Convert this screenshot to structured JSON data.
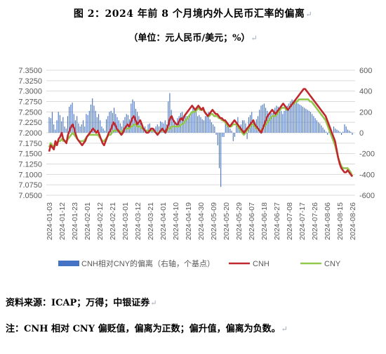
{
  "page": {
    "title": "图 2：2024 年前 8 个月境内外人民币汇率的偏离",
    "unit": "（单位：元人民币/美元；%）",
    "source": "资料来源：ICAP；万得；中银证券",
    "note": "注：CNH 相对 CNY 偏贬值，偏离为正数；偏升值，偏离为负数。",
    "para_mark": "↵"
  },
  "chart_data": {
    "type": "bar+line",
    "title": "",
    "y_left": {
      "min": 7.05,
      "max": 7.35,
      "step": 0.025,
      "decimals": 4
    },
    "y_right": {
      "min": -600,
      "max": 600,
      "step": 200
    },
    "x_tick_labels": [
      "2024-01-03",
      "2024-01-12",
      "2024-01-23",
      "2024-02-01",
      "2024-02-12",
      "2024-02-21",
      "2024-03-01",
      "2024-03-12",
      "2024-03-21",
      "2024-04-01",
      "2024-04-10",
      "2024-04-19",
      "2024-04-30",
      "2024-05-09",
      "2024-05-20",
      "2024-05-29",
      "2024-06-07",
      "2024-06-18",
      "2024-06-27",
      "2024-07-08",
      "2024-07-17",
      "2024-07-26",
      "2024-08-06",
      "2024-08-15",
      "2024-08-26"
    ],
    "legend": [
      "CNH相对CNY的偏离（右轴，个基点）",
      "CNH",
      "CNY"
    ],
    "colors": {
      "bar": "#4472c4",
      "cnh": "#c0282d",
      "cny": "#92c84e",
      "grid": "#d9d9d9",
      "axis_text": "#595959"
    },
    "series": [
      {
        "name": "CNH",
        "values": [
          7.155,
          7.17,
          7.165,
          7.16,
          7.18,
          7.17,
          7.185,
          7.19,
          7.2,
          7.185,
          7.18,
          7.175,
          7.195,
          7.205,
          7.215,
          7.22,
          7.21,
          7.195,
          7.185,
          7.18,
          7.175,
          7.17,
          7.175,
          7.18,
          7.19,
          7.195,
          7.2,
          7.205,
          7.21,
          7.205,
          7.2,
          7.205,
          7.195,
          7.185,
          7.175,
          7.17,
          7.18,
          7.19,
          7.2,
          7.205,
          7.215,
          7.225,
          7.22,
          7.21,
          7.205,
          7.2,
          7.195,
          7.2,
          7.21,
          7.215,
          7.22,
          7.215,
          7.225,
          7.235,
          7.24,
          7.23,
          7.22,
          7.225,
          7.23,
          7.22,
          7.21,
          7.205,
          7.2,
          7.2,
          7.205,
          7.21,
          7.21,
          7.205,
          7.2,
          7.195,
          7.2,
          7.205,
          7.21,
          7.205,
          7.2,
          7.21,
          7.22,
          7.235,
          7.24,
          7.23,
          7.225,
          7.22,
          7.22,
          7.23,
          7.235,
          7.23,
          7.24,
          7.245,
          7.25,
          7.255,
          7.26,
          7.265,
          7.26,
          7.255,
          7.26,
          7.265,
          7.26,
          7.255,
          7.26,
          7.25,
          7.245,
          7.24,
          7.245,
          7.25,
          7.255,
          7.25,
          7.245,
          7.245,
          7.24,
          7.235,
          7.235,
          7.23,
          7.23,
          7.225,
          7.22,
          7.215,
          7.22,
          7.225,
          7.23,
          7.225,
          7.22,
          7.215,
          7.21,
          7.205,
          7.2,
          7.205,
          7.21,
          7.215,
          7.22,
          7.225,
          7.23,
          7.22,
          7.215,
          7.21,
          7.205,
          7.2,
          7.21,
          7.22,
          7.23,
          7.24,
          7.245,
          7.25,
          7.255,
          7.25,
          7.245,
          7.25,
          7.255,
          7.26,
          7.265,
          7.27,
          7.265,
          7.26,
          7.255,
          7.26,
          7.265,
          7.27,
          7.275,
          7.28,
          7.285,
          7.29,
          7.295,
          7.3,
          7.305,
          7.305,
          7.3,
          7.295,
          7.29,
          7.285,
          7.28,
          7.275,
          7.27,
          7.265,
          7.26,
          7.255,
          7.25,
          7.245,
          7.24,
          7.23,
          7.22,
          7.21,
          7.2,
          7.19,
          7.18,
          7.16,
          7.14,
          7.125,
          7.115,
          7.11,
          7.105,
          7.105,
          7.11,
          7.105,
          7.1,
          7.095
        ]
      },
      {
        "name": "CNY",
        "values": [
          7.165,
          7.175,
          7.17,
          7.165,
          7.17,
          7.175,
          7.18,
          7.18,
          7.185,
          7.18,
          7.18,
          7.18,
          7.185,
          7.19,
          7.195,
          7.2,
          7.195,
          7.19,
          7.185,
          7.18,
          7.18,
          7.18,
          7.18,
          7.185,
          7.19,
          7.195,
          7.195,
          7.195,
          7.195,
          7.195,
          7.195,
          7.195,
          7.19,
          7.185,
          7.18,
          7.18,
          7.185,
          7.19,
          7.195,
          7.195,
          7.2,
          7.205,
          7.205,
          7.205,
          7.205,
          7.205,
          7.2,
          7.205,
          7.21,
          7.21,
          7.21,
          7.21,
          7.215,
          7.215,
          7.22,
          7.22,
          7.215,
          7.215,
          7.215,
          7.21,
          7.21,
          7.205,
          7.205,
          7.205,
          7.205,
          7.205,
          7.205,
          7.205,
          7.2,
          7.2,
          7.2,
          7.205,
          7.205,
          7.205,
          7.2,
          7.205,
          7.21,
          7.21,
          7.215,
          7.215,
          7.215,
          7.215,
          7.215,
          7.215,
          7.22,
          7.22,
          7.225,
          7.23,
          7.235,
          7.24,
          7.245,
          7.25,
          7.25,
          7.25,
          7.255,
          7.26,
          7.255,
          7.255,
          7.255,
          7.25,
          7.245,
          7.24,
          7.24,
          7.245,
          7.245,
          7.24,
          7.24,
          7.24,
          7.235,
          7.235,
          7.23,
          7.23,
          7.225,
          7.22,
          7.215,
          7.215,
          7.215,
          7.22,
          7.22,
          7.22,
          7.215,
          7.21,
          7.205,
          7.2,
          7.195,
          7.2,
          7.205,
          7.21,
          7.215,
          7.22,
          7.22,
          7.215,
          7.21,
          7.21,
          7.205,
          7.205,
          7.21,
          7.215,
          7.22,
          7.225,
          7.23,
          7.235,
          7.24,
          7.24,
          7.24,
          7.245,
          7.25,
          7.255,
          7.26,
          7.26,
          7.26,
          7.255,
          7.255,
          7.26,
          7.265,
          7.27,
          7.27,
          7.275,
          7.275,
          7.28,
          7.28,
          7.28,
          7.28,
          7.28,
          7.28,
          7.28,
          7.275,
          7.275,
          7.27,
          7.265,
          7.26,
          7.255,
          7.25,
          7.245,
          7.24,
          7.235,
          7.23,
          7.22,
          7.21,
          7.2,
          7.19,
          7.18,
          7.17,
          7.155,
          7.14,
          7.13,
          7.12,
          7.115,
          7.115,
          7.115,
          7.115,
          7.11,
          7.105,
          7.095
        ]
      },
      {
        "name": "CNH相对CNY的偏离（右轴，个基点）",
        "values": [
          150,
          140,
          200,
          80,
          30,
          120,
          200,
          170,
          110,
          150,
          60,
          40,
          160,
          250,
          270,
          290,
          180,
          120,
          160,
          90,
          60,
          80,
          120,
          60,
          180,
          170,
          210,
          270,
          330,
          260,
          210,
          150,
          180,
          120,
          60,
          40,
          20,
          130,
          160,
          200,
          210,
          190,
          240,
          180,
          150,
          120,
          90,
          60,
          120,
          150,
          180,
          170,
          130,
          280,
          320,
          300,
          230,
          200,
          160,
          110,
          90,
          50,
          60,
          30,
          80,
          90,
          40,
          30,
          40,
          60,
          80,
          60,
          110,
          100,
          90,
          120,
          80,
          300,
          380,
          220,
          130,
          120,
          70,
          140,
          160,
          190,
          200,
          150,
          170,
          160,
          160,
          180,
          200,
          260,
          230,
          210,
          160,
          170,
          150,
          130,
          120,
          160,
          180,
          200,
          130,
          100,
          80,
          60,
          -20,
          -120,
          -340,
          -520,
          -40,
          -40,
          120,
          80,
          70,
          40,
          20,
          -80,
          -40,
          90,
          150,
          60,
          80,
          120,
          120,
          90,
          -60,
          150,
          170,
          200,
          110,
          90,
          130,
          160,
          220,
          260,
          270,
          280,
          240,
          210,
          180,
          200,
          190,
          220,
          240,
          260,
          250,
          230,
          210,
          180,
          210,
          240,
          260,
          280,
          300,
          320,
          310,
          300,
          290,
          280,
          270,
          260,
          250,
          240,
          230,
          220,
          210,
          200,
          180,
          160,
          140,
          120,
          100,
          90,
          70,
          50,
          30,
          10,
          -20,
          40,
          20,
          -30,
          60,
          40,
          30,
          20,
          10,
          -20,
          10,
          80,
          60,
          30,
          20,
          10,
          -20
        ]
      }
    ]
  }
}
